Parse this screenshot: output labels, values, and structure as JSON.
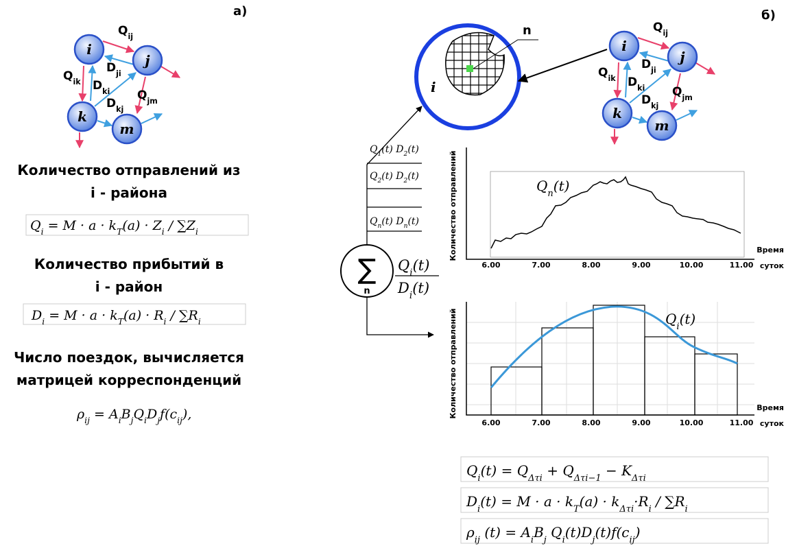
{
  "label_a": "а)",
  "label_b": "б)",
  "network": {
    "nodes": [
      "i",
      "j",
      "k",
      "m"
    ],
    "edges": [
      [
        "Q",
        "ij"
      ],
      [
        "D",
        "ji"
      ],
      [
        "Q",
        "ik"
      ],
      [
        "D",
        "ki"
      ],
      [
        "D",
        "kj"
      ],
      [
        "Q",
        "jm"
      ]
    ]
  },
  "left": {
    "departures_title": [
      "Количество отправлений из",
      "i - района"
    ],
    "departures_formula": [
      "Q",
      "i",
      " = M · a · k",
      "T",
      "(a) · Z",
      "i",
      " / ∑Z",
      "i"
    ],
    "arrivals_title": [
      "Количество прибытий в",
      "i - район"
    ],
    "arrivals_formula": [
      "D",
      "i",
      " = M · a · k",
      "T",
      "(a) · R",
      "i",
      " / ∑R",
      "i"
    ],
    "trips_title": [
      "Число поездок, вычисляется",
      "матрицей корреспонденций"
    ],
    "trips_formula": [
      "ρ",
      "ij",
      " = A",
      "i",
      "B",
      "j",
      "Q",
      "i",
      "D",
      "j",
      "f(c",
      "ij",
      "),"
    ]
  },
  "zone": {
    "label": "i",
    "cell_label": "n"
  },
  "flows": [
    [
      "Q",
      "1",
      "(t) D",
      "2",
      "(t)"
    ],
    [
      "Q",
      "2",
      "(t) D",
      "2",
      "(t)"
    ],
    [
      "Q",
      "n",
      "(t) D",
      "n",
      "(t)"
    ]
  ],
  "sum": {
    "symbol": "∑",
    "index": "n",
    "numerator": [
      "Q",
      "i",
      "(t)"
    ],
    "denominator": [
      "D",
      "i",
      "(t)"
    ]
  },
  "line_chart": {
    "y_label": "Количество отправлений",
    "x_label": "Время",
    "x_unit": "суток",
    "series_label": [
      "Q",
      "n",
      "(t)"
    ],
    "x_ticks": [
      "6.00",
      "7.00",
      "8.00",
      "9.00",
      "10.00",
      "11.00"
    ]
  },
  "histogram": {
    "y_label": "Количество отправлений",
    "x_label": "Время",
    "x_unit": "суток",
    "series_label": [
      "Q",
      "i",
      "(t)"
    ],
    "x_ticks": [
      "6.00",
      "7.00",
      "8.00",
      "9.00",
      "10.00",
      "11.00"
    ]
  },
  "formulas": [
    [
      "Q",
      "i",
      "(t) = Q",
      "Δτi",
      " + Q",
      "Δτi−1",
      " − K",
      "Δτi"
    ],
    [
      "D",
      "i",
      "(t) = M · a · k",
      "T",
      "(a) · k",
      "Δτi",
      "·R",
      "i",
      " / ∑R",
      "i"
    ],
    [
      "ρ",
      "ij",
      " (t) = A",
      "i",
      "B",
      "j",
      " Q",
      "i",
      "(t)D",
      "j",
      "(t)f(c",
      "ij",
      ")"
    ]
  ]
}
